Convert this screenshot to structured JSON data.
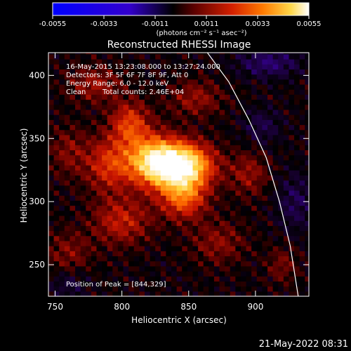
{
  "chart_data": {
    "type": "heatmap",
    "title": "Reconstructed RHESSI Image",
    "xlabel": "Heliocentric X (arcsec)",
    "ylabel": "Heliocentric Y (arcsec)",
    "xlim": [
      745,
      940
    ],
    "ylim": [
      225,
      418
    ],
    "xticks": [
      750,
      800,
      850,
      900
    ],
    "yticks": [
      250,
      300,
      350,
      400
    ],
    "colorbar": {
      "min": -0.0055,
      "max": 0.0055,
      "ticks": [
        "-0.0055",
        "-0.0033",
        "-0.0011",
        "0.0011",
        "0.0033",
        "0.0055"
      ],
      "unit_label": "(photons cm⁻² s⁻¹ asec⁻²)"
    },
    "annotations": {
      "time_range": "16-May-2015 13:23:08.000 to 13:27:24.000",
      "detectors": "Detectors: 3F 5F 6F 7F 8F 9F, Att 0",
      "energy_range": "Energy Range: 6.0 - 12.0 keV",
      "method": "Clean",
      "total_counts": "Total counts: 2.46E+04",
      "peak_position": "Position of Peak = [844,329]"
    },
    "peak": {
      "x": 844,
      "y": 329
    },
    "limb_arc": [
      [
        864,
        418
      ],
      [
        880,
        395
      ],
      [
        895,
        365
      ],
      [
        908,
        335
      ],
      [
        918,
        300
      ],
      [
        926,
        265
      ],
      [
        932,
        225
      ]
    ],
    "sources": [
      {
        "x": 844,
        "y": 329,
        "sx": 16,
        "sy": 12,
        "amp": 0.0055
      },
      {
        "x": 822,
        "y": 333,
        "sx": 14,
        "sy": 14,
        "amp": 0.0035
      },
      {
        "x": 846,
        "y": 304,
        "sx": 12,
        "sy": 12,
        "amp": 0.0027
      },
      {
        "x": 806,
        "y": 362,
        "sx": 10,
        "sy": 12,
        "amp": 0.0022
      },
      {
        "x": 790,
        "y": 330,
        "sx": 12,
        "sy": 15,
        "amp": 0.002
      },
      {
        "x": 800,
        "y": 285,
        "sx": 15,
        "sy": 13,
        "amp": 0.0017
      },
      {
        "x": 780,
        "y": 393,
        "sx": 14,
        "sy": 10,
        "amp": 0.0013
      },
      {
        "x": 855,
        "y": 382,
        "sx": 14,
        "sy": 10,
        "amp": 0.0012
      },
      {
        "x": 895,
        "y": 322,
        "sx": 10,
        "sy": 12,
        "amp": 0.0012
      },
      {
        "x": 872,
        "y": 268,
        "sx": 14,
        "sy": 12,
        "amp": 0.0011
      },
      {
        "x": 760,
        "y": 340,
        "sx": 10,
        "sy": 14,
        "amp": 0.001
      },
      {
        "x": 760,
        "y": 260,
        "sx": 12,
        "sy": 12,
        "amp": 0.001
      },
      {
        "x": 920,
        "y": 250,
        "sx": 8,
        "sy": 10,
        "amp": 0.0009
      },
      {
        "x": 910,
        "y": 410,
        "sx": 16,
        "sy": 8,
        "amp": -0.0014
      },
      {
        "x": 930,
        "y": 300,
        "sx": 10,
        "sy": 16,
        "amp": -0.001
      },
      {
        "x": 905,
        "y": 360,
        "sx": 10,
        "sy": 10,
        "amp": -0.0009
      },
      {
        "x": 760,
        "y": 235,
        "sx": 10,
        "sy": 8,
        "amp": -0.0008
      }
    ]
  },
  "footer": {
    "timestamp": "21-May-2022 08:31"
  }
}
